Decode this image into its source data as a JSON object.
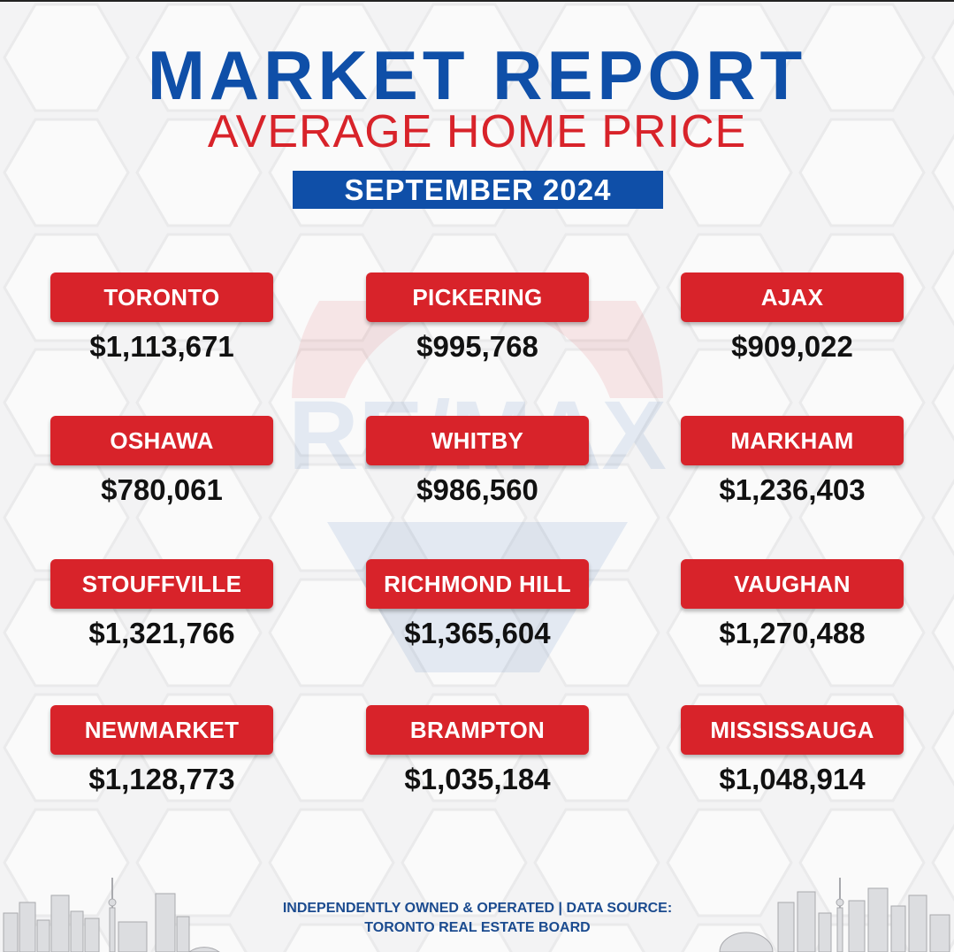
{
  "header": {
    "title": "MARKET REPORT",
    "subtitle": "AVERAGE HOME PRICE",
    "period": "SEPTEMBER 2024"
  },
  "cities": [
    {
      "name": "TORONTO",
      "price": "$1,113,671"
    },
    {
      "name": "PICKERING",
      "price": "$995,768"
    },
    {
      "name": "AJAX",
      "price": "$909,022"
    },
    {
      "name": "OSHAWA",
      "price": "$780,061"
    },
    {
      "name": "WHITBY",
      "price": "$986,560"
    },
    {
      "name": "MARKHAM",
      "price": "$1,236,403"
    },
    {
      "name": "STOUFFVILLE",
      "price": "$1,321,766"
    },
    {
      "name": "RICHMOND HILL",
      "price": "$1,365,604"
    },
    {
      "name": "VAUGHAN",
      "price": "$1,270,488"
    },
    {
      "name": "NEWMARKET",
      "price": "$1,128,773"
    },
    {
      "name": "BRAMPTON",
      "price": "$1,035,184"
    },
    {
      "name": "MISSISSAUGA",
      "price": "$1,048,914"
    }
  ],
  "footer": {
    "line1": "INDEPENDENTLY OWNED & OPERATED | DATA SOURCE:",
    "line2": "TORONTO REAL ESTATE BOARD"
  },
  "watermark_text": "RE/MAX",
  "colors": {
    "brand_blue": "#0f4fa8",
    "brand_red": "#d8232a",
    "background": "#f3f3f4",
    "price_text": "#111111"
  },
  "icons": {
    "watermark": "remax-balloon-logo",
    "skyline": "toronto-skyline-illustration"
  }
}
